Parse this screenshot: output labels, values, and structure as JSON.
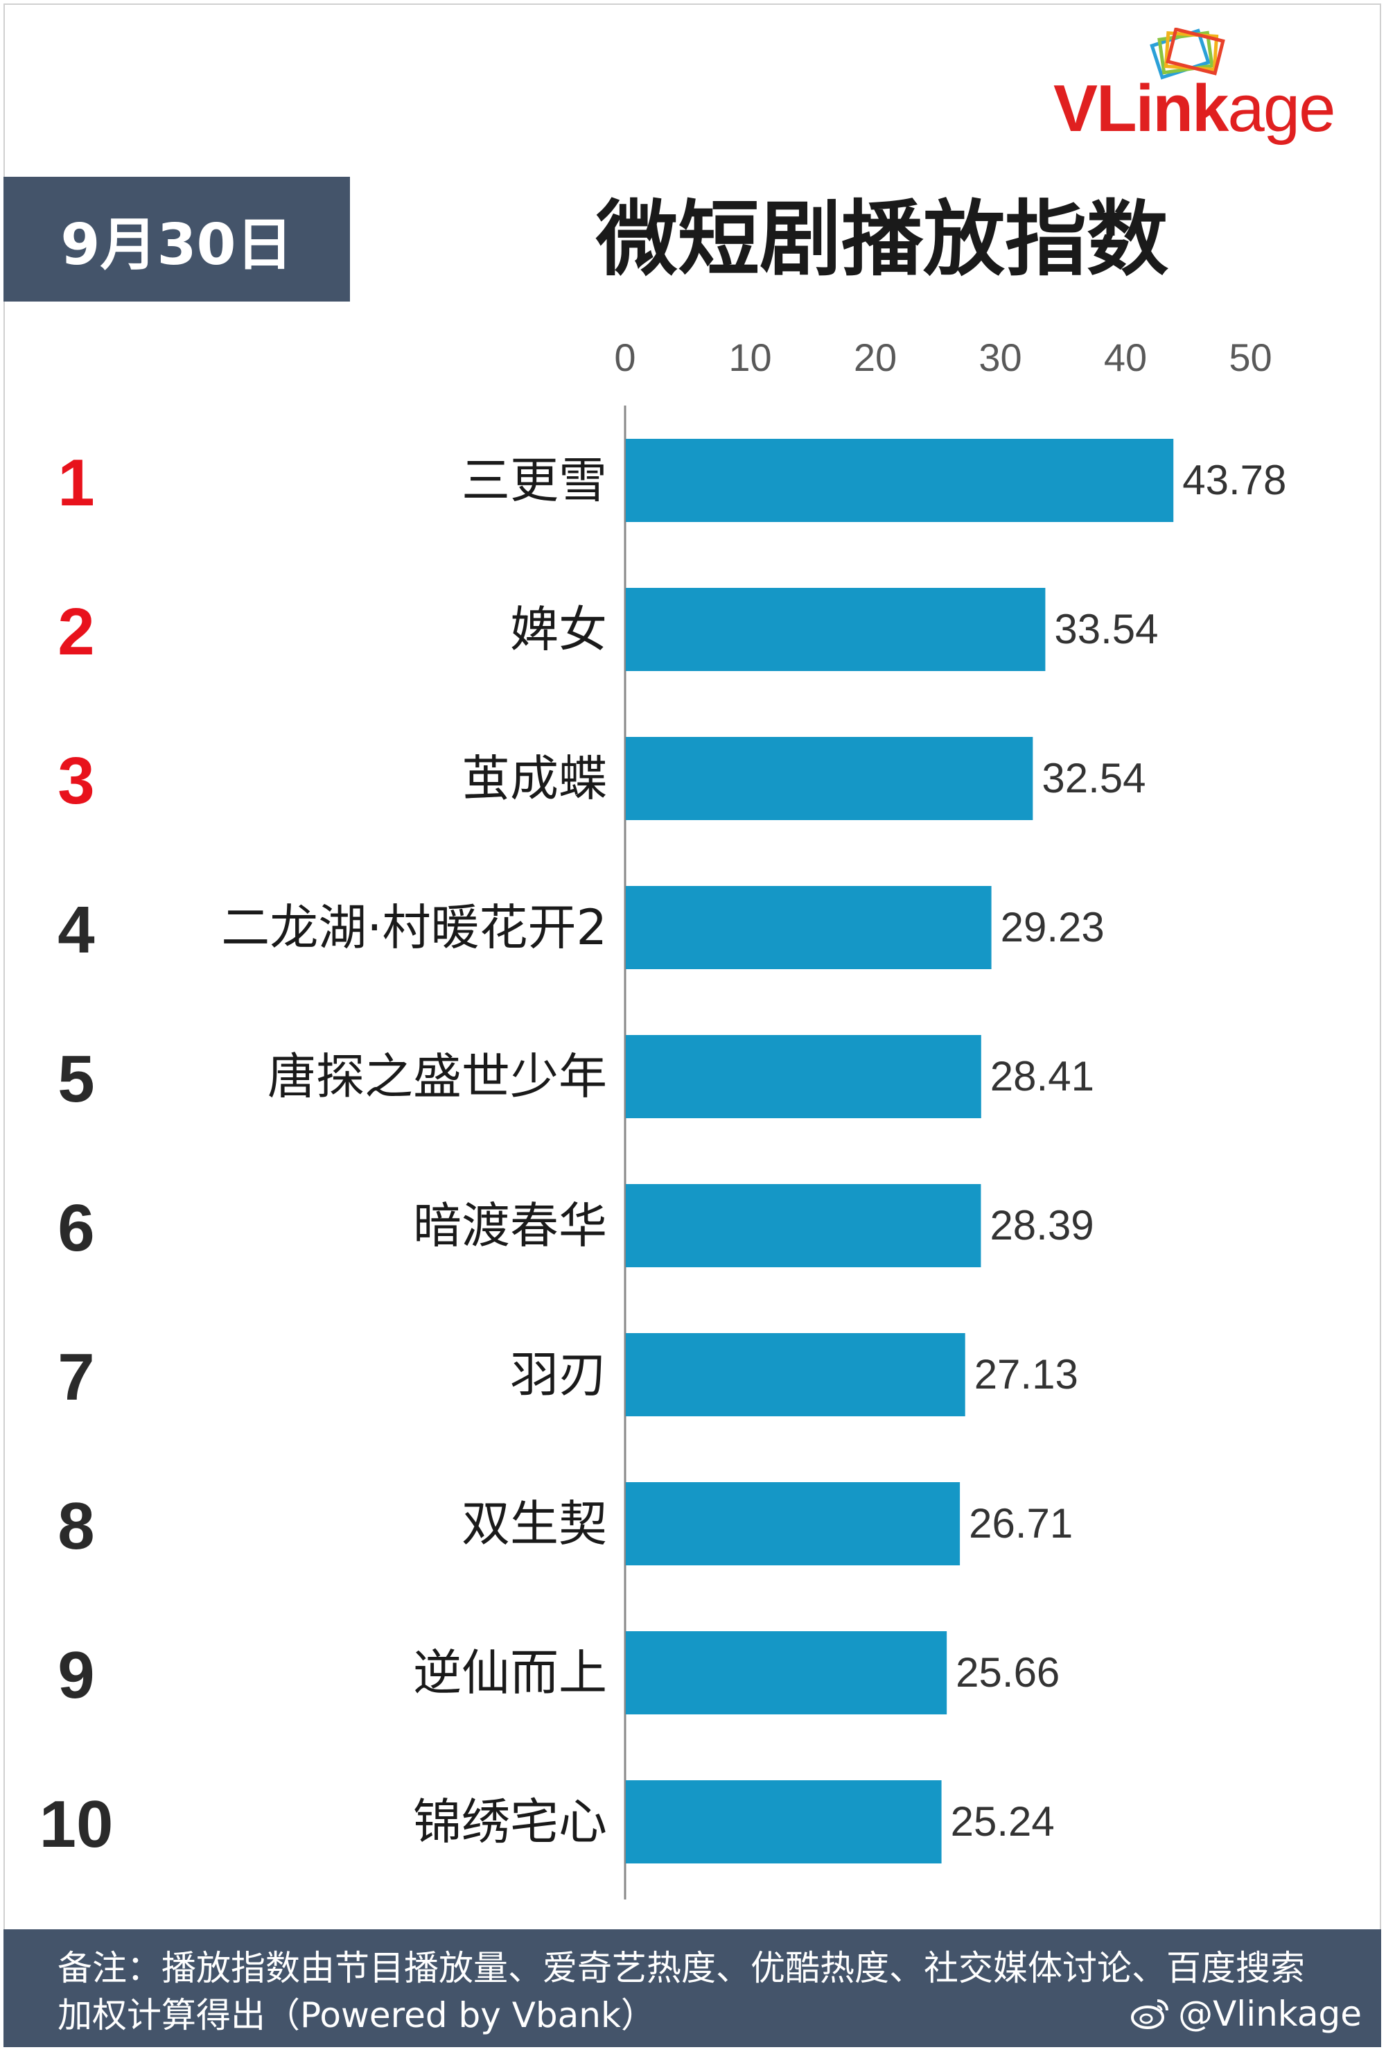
{
  "logo": {
    "text_v": "V",
    "text_l": "Link",
    "text_age": "age"
  },
  "date_label": "9月30日",
  "title": "微短剧播放指数",
  "colors": {
    "bar": "#1597c6",
    "top3_rank": "#e8121c",
    "rank": "#2a2a2a",
    "panel": "#44546a"
  },
  "chart_data": {
    "type": "bar",
    "orientation": "horizontal",
    "title": "微短剧播放指数",
    "xlim": [
      0,
      50
    ],
    "xticks": [
      "0",
      "10",
      "20",
      "30",
      "40",
      "50"
    ],
    "ranks": [
      "1",
      "2",
      "3",
      "4",
      "5",
      "6",
      "7",
      "8",
      "9",
      "10"
    ],
    "categories": [
      "三更雪",
      "婢女",
      "茧成蝶",
      "二龙湖·村暖花开2",
      "唐探之盛世少年",
      "暗渡春华",
      "羽刃",
      "双生契",
      "逆仙而上",
      "锦绣宅心"
    ],
    "values": [
      43.78,
      33.54,
      32.54,
      29.23,
      28.41,
      28.39,
      27.13,
      26.71,
      25.66,
      25.24
    ],
    "value_labels": [
      "43.78",
      "33.54",
      "32.54",
      "29.23",
      "28.41",
      "28.39",
      "27.13",
      "26.71",
      "25.66",
      "25.24"
    ],
    "grid": false,
    "legend": "none"
  },
  "footer": {
    "note": "备注：播放指数由节目播放量、爱奇艺热度、优酷热度、社交媒体讨论、百度搜索加权计算得出（Powered by Vbank）",
    "handle": "@Vlinkage"
  }
}
